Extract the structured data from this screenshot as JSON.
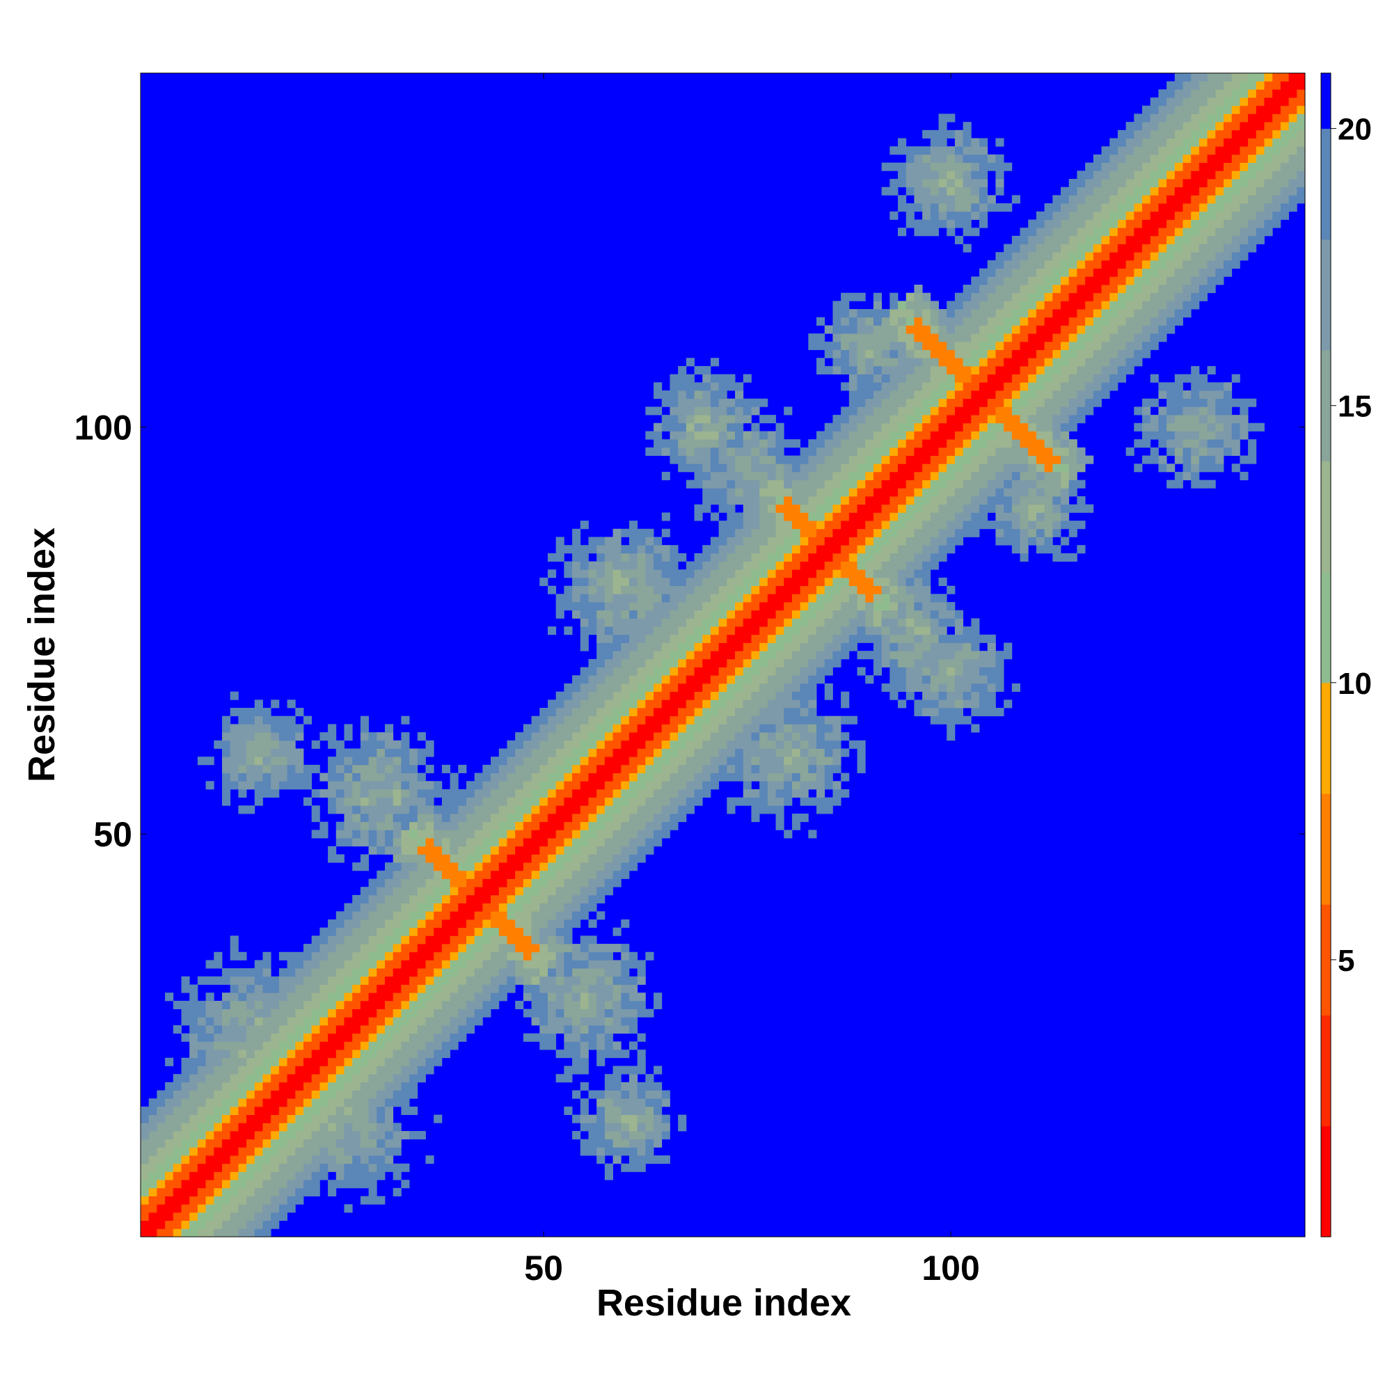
{
  "chart_data": {
    "type": "heatmap",
    "title": "",
    "xlabel": "Residue index",
    "ylabel": "Residue index",
    "n_residues": 143,
    "xlim": [
      1,
      143
    ],
    "ylim": [
      1,
      143
    ],
    "x_ticks": [
      50,
      100
    ],
    "y_ticks": [
      50,
      100
    ],
    "x_tick_labels": [
      "50",
      "100"
    ],
    "y_tick_labels": [
      "50",
      "100"
    ],
    "colorbar": {
      "range": [
        0,
        21
      ],
      "ticks": [
        5,
        10,
        15,
        20
      ],
      "tick_labels": [
        "5",
        "10",
        "15",
        "20"
      ],
      "cutoff": 20,
      "colors": [
        "#ff0000",
        "#ff2a00",
        "#ff5500",
        "#ff8000",
        "#ffaa00",
        "#8fbc8f",
        "#9cb490",
        "#8aa59a",
        "#7d9aaa",
        "#5a86b8",
        "#0000ff"
      ]
    },
    "grid": false,
    "legend": "colorbar-right",
    "contact_bands": [
      {
        "type": "diagonal",
        "description": "self-distance band along main diagonal"
      },
      {
        "type": "anti-parallel",
        "center_i": 42,
        "center_j": 42,
        "length": 14
      },
      {
        "type": "anti-parallel",
        "center_i": 104,
        "center_j": 104,
        "length": 18
      },
      {
        "type": "anti-parallel",
        "center_i": 85,
        "center_j": 85,
        "length": 14
      }
    ]
  }
}
